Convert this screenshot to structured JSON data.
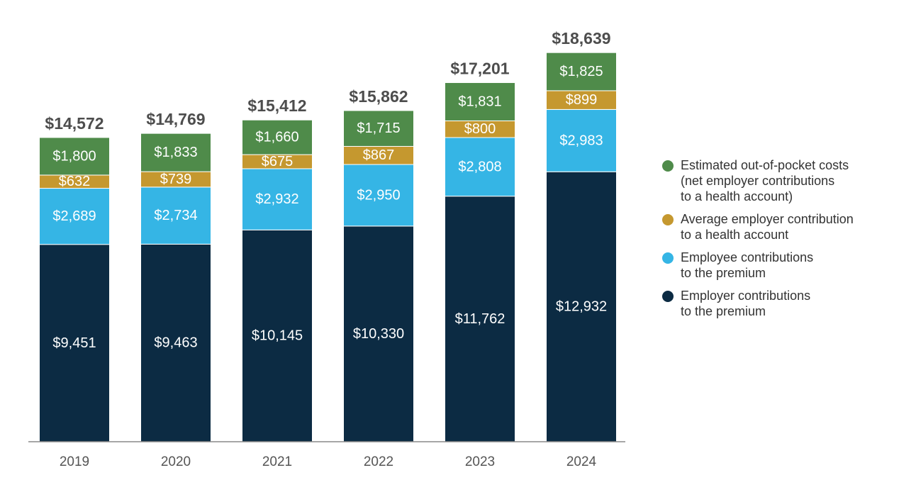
{
  "chart_data": {
    "type": "bar",
    "stacked": true,
    "categories": [
      "2019",
      "2020",
      "2021",
      "2022",
      "2023",
      "2024"
    ],
    "series": [
      {
        "name": "Employer contributions to the premium",
        "legend_lines": [
          "Employer contributions",
          "to the premium"
        ],
        "color": "#0c2b43",
        "values": [
          9451,
          9463,
          10145,
          10330,
          11762,
          12932
        ],
        "labels": [
          "$9,451",
          "$9,463",
          "$10,145",
          "$10,330",
          "$11,762",
          "$12,932"
        ]
      },
      {
        "name": "Employee contributions to the premium",
        "legend_lines": [
          "Employee contributions",
          "to the premium"
        ],
        "color": "#35b5e5",
        "values": [
          2689,
          2734,
          2932,
          2950,
          2808,
          2983
        ],
        "labels": [
          "$2,689",
          "$2,734",
          "$2,932",
          "$2,950",
          "$2,808",
          "$2,983"
        ]
      },
      {
        "name": "Average employer contribution to a health account",
        "legend_lines": [
          "Average employer contribution",
          "to a health account"
        ],
        "color": "#c5982f",
        "values": [
          632,
          739,
          675,
          867,
          800,
          899
        ],
        "labels": [
          "$632",
          "$739",
          "$675",
          "$867",
          "$800",
          "$899"
        ]
      },
      {
        "name": "Estimated out-of-pocket costs (net employer contributions to a health account)",
        "legend_lines": [
          "Estimated out-of-pocket costs",
          "(net employer contributions",
          "to a health account)"
        ],
        "color": "#4f8b4a",
        "values": [
          1800,
          1833,
          1660,
          1715,
          1831,
          1825
        ],
        "labels": [
          "$1,800",
          "$1,833",
          "$1,660",
          "$1,715",
          "$1,831",
          "$1,825"
        ]
      }
    ],
    "totals": [
      14572,
      14769,
      15412,
      15862,
      17201,
      18639
    ],
    "total_labels": [
      "$14,572",
      "$14,769",
      "$15,412",
      "$15,862",
      "$17,201",
      "$18,639"
    ],
    "ylim": [
      0,
      19800
    ],
    "title": "",
    "xlabel": "",
    "ylabel": "",
    "grid": false,
    "legend_position": "right"
  }
}
